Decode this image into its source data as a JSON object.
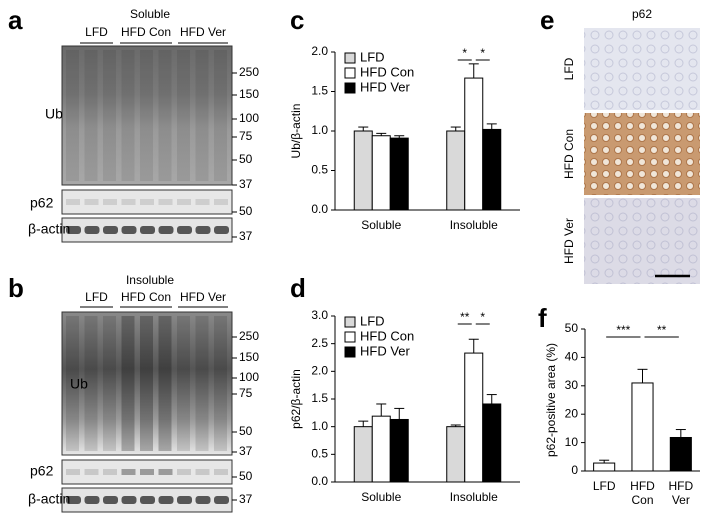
{
  "blots": [
    {
      "label": "a",
      "title": "Soluble",
      "groups": [
        "LFD",
        "HFD Con",
        "HFD Ver"
      ],
      "rows": [
        "Ub",
        "p62",
        "β-actin"
      ],
      "markers": [
        250,
        150,
        100,
        75,
        50,
        37,
        50,
        37
      ]
    },
    {
      "label": "b",
      "title": "Insoluble",
      "groups": [
        "LFD",
        "HFD Con",
        "HFD Ver"
      ],
      "rows": [
        "Ub",
        "p62",
        "β-actin"
      ],
      "markers": [
        250,
        150,
        100,
        75,
        50,
        37,
        50,
        37
      ]
    }
  ],
  "micrographs": {
    "label": "e",
    "title": "p62",
    "rows": [
      "LFD",
      "HFD Con",
      "HFD Ver"
    ]
  },
  "chart_data": [
    {
      "type": "grouped-bar",
      "panel": "c",
      "ylabel": "Ub/β-actin",
      "categories": [
        "Soluble",
        "Insoluble"
      ],
      "series": [
        {
          "name": "LFD",
          "color": "#d9d9d9",
          "values": [
            1.0,
            1.0
          ],
          "errors": [
            0.05,
            0.05
          ]
        },
        {
          "name": "HFD Con",
          "color": "#ffffff",
          "values": [
            0.94,
            1.67
          ],
          "errors": [
            0.03,
            0.18
          ]
        },
        {
          "name": "HFD Ver",
          "color": "#000000",
          "values": [
            0.91,
            1.02
          ],
          "errors": [
            0.03,
            0.07
          ]
        }
      ],
      "ylim": [
        0,
        2.0
      ],
      "yticks": [
        {
          "value": 0,
          "label": "0.0"
        },
        {
          "value": 0.5,
          "label": "0.5"
        },
        {
          "value": 1,
          "label": "1.0"
        },
        {
          "value": 1.5,
          "label": "1.5"
        },
        {
          "value": 2,
          "label": "2.0"
        }
      ],
      "significance": [
        "*",
        "*"
      ]
    },
    {
      "type": "grouped-bar",
      "panel": "d",
      "ylabel": "p62/β-actin",
      "categories": [
        "Soluble",
        "Insoluble"
      ],
      "series": [
        {
          "name": "LFD",
          "color": "#d9d9d9",
          "values": [
            1.0,
            1.0
          ],
          "errors": [
            0.1,
            0.03
          ]
        },
        {
          "name": "HFD Con",
          "color": "#ffffff",
          "values": [
            1.19,
            2.33
          ],
          "errors": [
            0.22,
            0.25
          ]
        },
        {
          "name": "HFD Ver",
          "color": "#000000",
          "values": [
            1.13,
            1.41
          ],
          "errors": [
            0.2,
            0.17
          ]
        }
      ],
      "ylim": [
        0,
        3.0
      ],
      "yticks": [
        {
          "value": 0,
          "label": "0.0"
        },
        {
          "value": 0.5,
          "label": "0.5"
        },
        {
          "value": 1,
          "label": "1.0"
        },
        {
          "value": 1.5,
          "label": "1.5"
        },
        {
          "value": 2,
          "label": "2.0"
        },
        {
          "value": 2.5,
          "label": "2.5"
        },
        {
          "value": 3,
          "label": "3.0"
        }
      ],
      "significance": [
        "**",
        "*"
      ]
    },
    {
      "type": "bar",
      "panel": "f",
      "ylabel": "p62-positive area (%)",
      "categories": [
        [
          "LFD"
        ],
        [
          "HFD",
          "Con"
        ],
        [
          "HFD",
          "Ver"
        ]
      ],
      "values": [
        2.8,
        31,
        11.8
      ],
      "errors": [
        1.0,
        4.8,
        2.8
      ],
      "colors": [
        "#ffffff",
        "#ffffff",
        "#000000"
      ],
      "ylim": [
        0,
        50
      ],
      "yticks": [
        0,
        10,
        20,
        30,
        40,
        50
      ],
      "significance": [
        "***",
        "**"
      ]
    }
  ]
}
